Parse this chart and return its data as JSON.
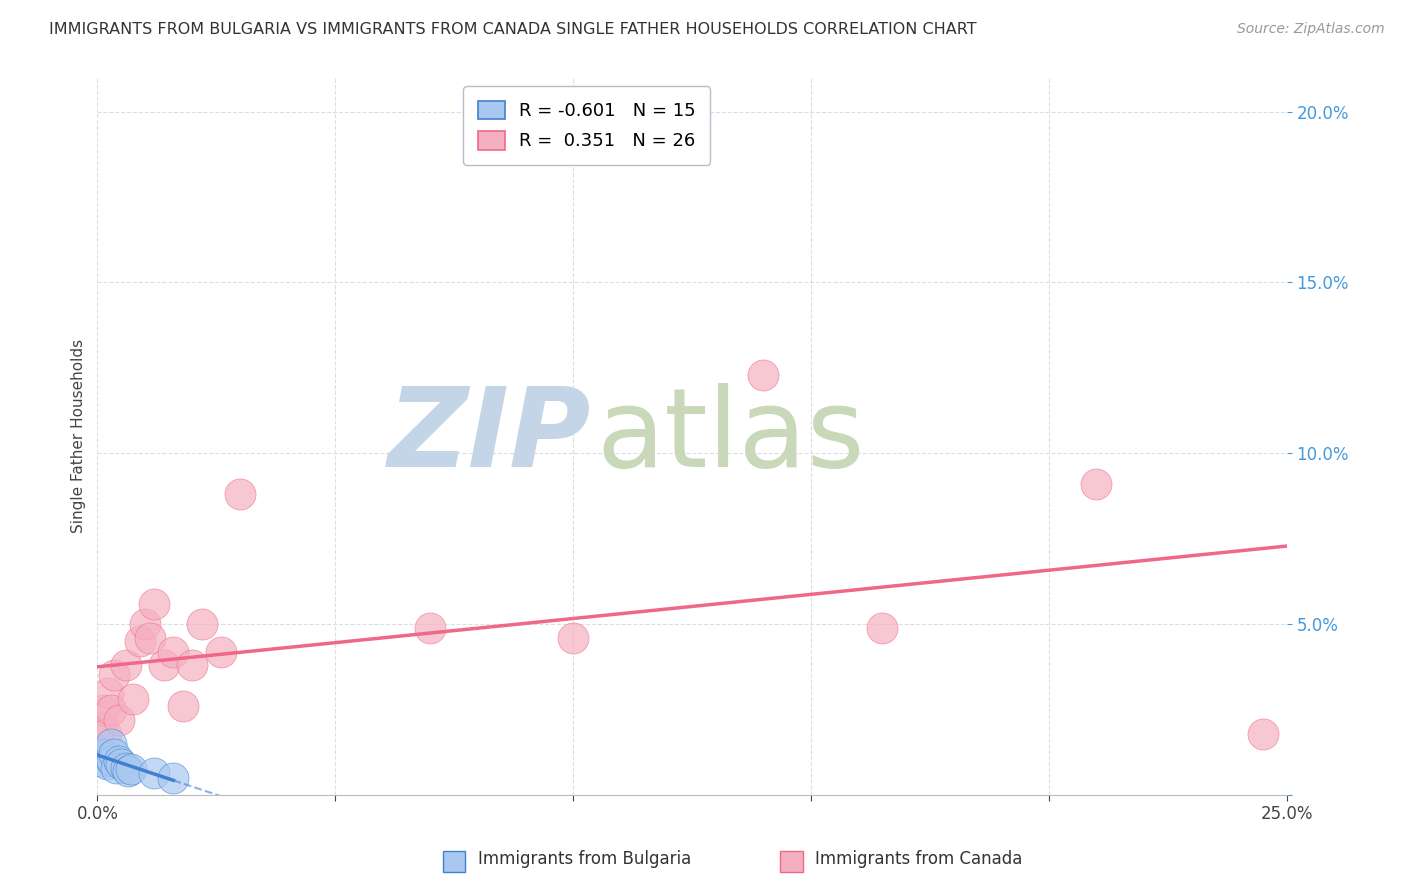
{
  "title": "IMMIGRANTS FROM BULGARIA VS IMMIGRANTS FROM CANADA SINGLE FATHER HOUSEHOLDS CORRELATION CHART",
  "source": "Source: ZipAtlas.com",
  "ylabel": "Single Father Households",
  "xlim": [
    0.0,
    0.25
  ],
  "ylim": [
    0.0,
    0.21
  ],
  "ytick_vals": [
    0.0,
    0.05,
    0.1,
    0.15,
    0.2
  ],
  "xtick_vals": [
    0.0,
    0.05,
    0.1,
    0.15,
    0.2,
    0.25
  ],
  "bulgaria_x": [
    0.001,
    0.0015,
    0.002,
    0.0025,
    0.0028,
    0.003,
    0.0035,
    0.004,
    0.0045,
    0.005,
    0.006,
    0.0065,
    0.007,
    0.012,
    0.016
  ],
  "bulgaria_y": [
    0.01,
    0.012,
    0.009,
    0.011,
    0.015,
    0.01,
    0.012,
    0.008,
    0.01,
    0.009,
    0.008,
    0.007,
    0.0075,
    0.0065,
    0.005
  ],
  "canada_x": [
    0.0008,
    0.0012,
    0.0018,
    0.0022,
    0.0028,
    0.0035,
    0.0045,
    0.006,
    0.0075,
    0.009,
    0.01,
    0.011,
    0.012,
    0.014,
    0.016,
    0.018,
    0.02,
    0.022,
    0.026,
    0.03,
    0.07,
    0.1,
    0.14,
    0.165,
    0.21,
    0.245
  ],
  "canada_y": [
    0.02,
    0.025,
    0.018,
    0.03,
    0.025,
    0.035,
    0.022,
    0.038,
    0.028,
    0.045,
    0.05,
    0.046,
    0.056,
    0.038,
    0.042,
    0.026,
    0.038,
    0.05,
    0.042,
    0.088,
    0.049,
    0.046,
    0.123,
    0.049,
    0.091,
    0.018
  ],
  "bulgaria_R": -0.601,
  "bulgaria_N": 15,
  "canada_R": 0.351,
  "canada_N": 26,
  "bulgaria_color": "#A8C8F0",
  "canada_color": "#F5B0C0",
  "bulgaria_line_color": "#4080D0",
  "canada_line_color": "#F06888",
  "watermark_zip": "ZIP",
  "watermark_atlas": "atlas",
  "watermark_color_zip": "#C5D5E8",
  "watermark_color_atlas": "#C8D8B8",
  "background_color": "#FFFFFF",
  "grid_color": "#DDDDE8"
}
